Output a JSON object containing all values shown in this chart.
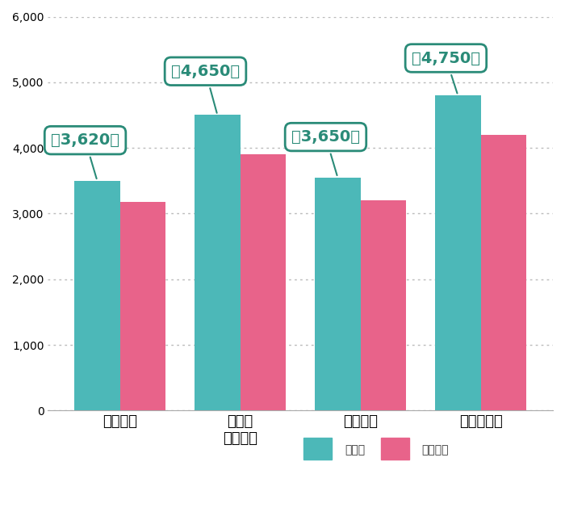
{
  "categories": [
    "注文住宅",
    "土地付\n注文住宅",
    "建売住宅",
    "マンション"
  ],
  "shuto_values": [
    3500,
    4500,
    3550,
    4800
  ],
  "zenkoku_values": [
    3180,
    3900,
    3200,
    4200
  ],
  "shuto_color": "#4CB8B8",
  "zenkoku_color": "#E8638A",
  "annotations": [
    {
      "text": "約3,620万",
      "bar_index": 0
    },
    {
      "text": "約4,650万",
      "bar_index": 1
    },
    {
      "text": "約3,650万",
      "bar_index": 2
    },
    {
      "text": "約4,750万",
      "bar_index": 3
    }
  ],
  "ylim": [
    0,
    6000
  ],
  "yticks": [
    0,
    1000,
    2000,
    3000,
    4000,
    5000,
    6000
  ],
  "legend_labels": [
    "首都圈",
    "全国平均"
  ],
  "bar_width": 0.38,
  "annotation_color": "#2A8B78",
  "annotation_fontsize": 14,
  "tick_fontsize": 13,
  "legend_fontsize": 14,
  "background_color": "#ffffff",
  "grid_color": "#bbbbbb"
}
